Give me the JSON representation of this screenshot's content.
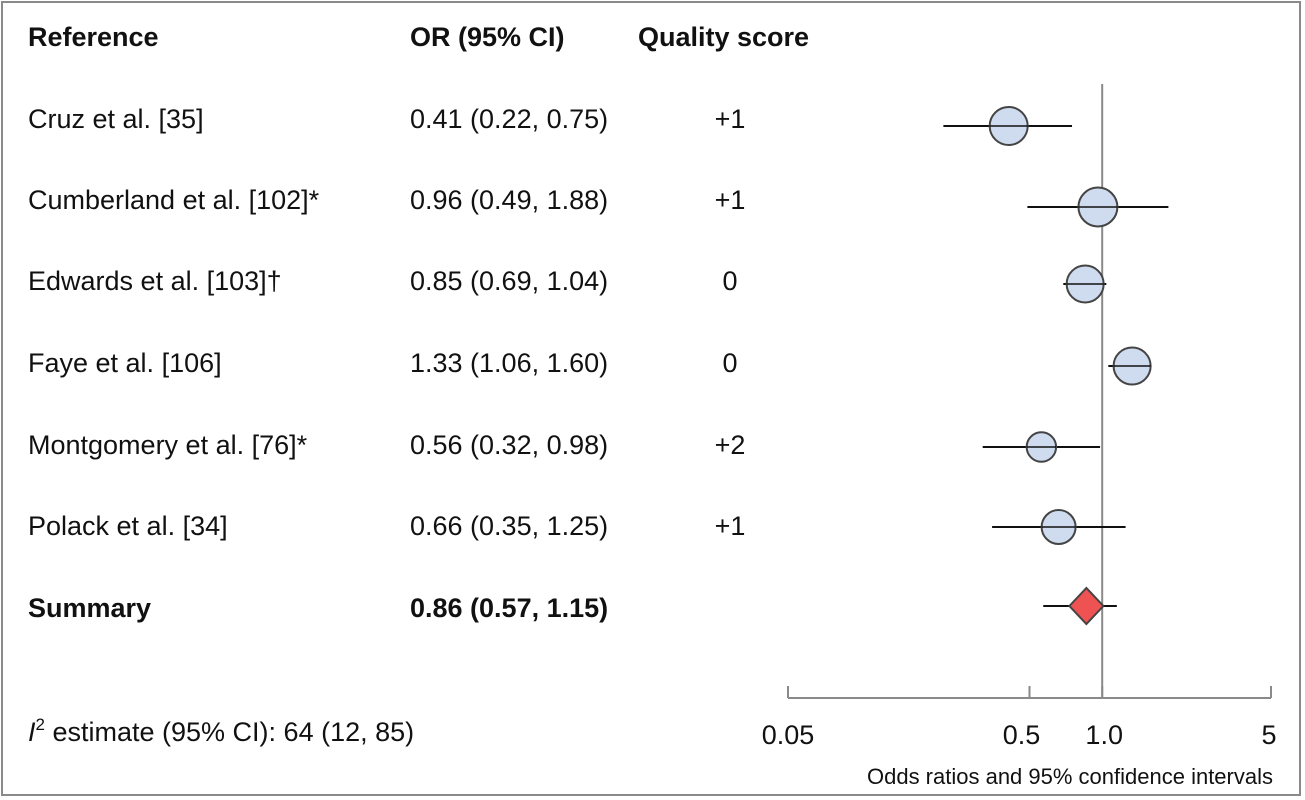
{
  "headers": {
    "reference": "Reference",
    "or_ci": "OR (95% CI)",
    "quality": "Quality score"
  },
  "rows": [
    {
      "reference": "Cruz et al. [35]",
      "or_ci": "0.41 (0.22, 0.75)",
      "quality": "+1"
    },
    {
      "reference": "Cumberland et al. [102]*",
      "or_ci": "0.96 (0.49, 1.88)",
      "quality": "+1"
    },
    {
      "reference": "Edwards et al. [103]†",
      "or_ci": "0.85 (0.69, 1.04)",
      "quality": "0"
    },
    {
      "reference": "Faye et al. [106]",
      "or_ci": "1.33 (1.06, 1.60)",
      "quality": "0"
    },
    {
      "reference": "Montgomery et al. [76]*",
      "or_ci": "0.56 (0.32, 0.98)",
      "quality": "+2"
    },
    {
      "reference": "Polack et al. [34]",
      "or_ci": "0.66 (0.35, 1.25)",
      "quality": "+1"
    }
  ],
  "summary": {
    "reference": "Summary",
    "or_ci": "0.86 (0.57, 1.15)"
  },
  "heterogeneity": {
    "symbol": "I",
    "superscript": "2",
    "label": " estimate (95% CI):  64 (12, 85)"
  },
  "chart_data": {
    "type": "forest",
    "scale": "log",
    "xlim": [
      0.05,
      5
    ],
    "reference_line": 1.0,
    "tick_values": [
      0.05,
      0.5,
      1.0,
      5
    ],
    "tick_labels": [
      "0.05",
      "0.5",
      "1.0",
      "5"
    ],
    "xlabel": "Odds ratios and 95% confidence intervals",
    "studies": [
      {
        "or": 0.41,
        "lower": 0.22,
        "upper": 0.75,
        "weight": 1.0
      },
      {
        "or": 0.96,
        "lower": 0.49,
        "upper": 1.88,
        "weight": 1.05
      },
      {
        "or": 0.85,
        "lower": 0.69,
        "upper": 1.04,
        "weight": 0.95
      },
      {
        "or": 1.33,
        "lower": 1.06,
        "upper": 1.6,
        "weight": 0.95
      },
      {
        "or": 0.56,
        "lower": 0.32,
        "upper": 0.98,
        "weight": 0.6
      },
      {
        "or": 0.66,
        "lower": 0.35,
        "upper": 1.25,
        "weight": 0.8
      }
    ],
    "summary": {
      "or": 0.86,
      "lower": 0.57,
      "upper": 1.15
    },
    "colors": {
      "study_fill": "#cfdcef",
      "summary_fill": "#ef5252",
      "line": "#111111",
      "reference_line": "#8a8a8a",
      "axis": "#8a8a8a"
    }
  }
}
